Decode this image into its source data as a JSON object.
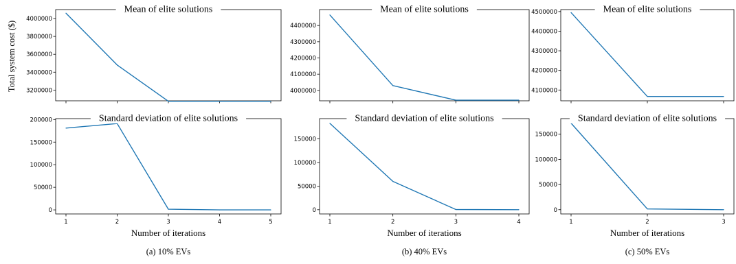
{
  "colors": {
    "line": "#1f77b4",
    "axes": "#000000",
    "background": "#ffffff"
  },
  "ylabel": "Total system cost ($)",
  "chart_data": [
    {
      "type": "line",
      "caption": "(a) 10% EVs",
      "xlabel": "Number of iterations",
      "xticks": [
        "1",
        "2",
        "3",
        "4",
        "5"
      ],
      "mean": {
        "title": "Mean of elite solutions",
        "x": [
          1,
          2,
          3,
          4,
          5
        ],
        "values": [
          4060000,
          3480000,
          3075000,
          3075000,
          3075000
        ],
        "ylim": [
          3080000,
          4100000
        ],
        "yticks": [
          "3200000",
          "3400000",
          "3600000",
          "3800000",
          "4000000"
        ]
      },
      "std": {
        "title": "Standard deviation of elite solutions",
        "x": [
          1,
          2,
          3,
          4,
          5
        ],
        "values": [
          181000,
          191000,
          1500,
          0,
          0
        ],
        "ylim": [
          -9000,
          202000
        ],
        "yticks": [
          "0",
          "50000",
          "100000",
          "150000",
          "200000"
        ]
      }
    },
    {
      "type": "line",
      "caption": "(b) 40% EVs",
      "xlabel": "Number of iterations",
      "xticks": [
        "1",
        "2",
        "3",
        "4"
      ],
      "mean": {
        "title": "Mean of elite solutions",
        "x": [
          1,
          2,
          3,
          4
        ],
        "values": [
          4465000,
          4030000,
          3940000,
          3940000
        ],
        "ylim": [
          3936000,
          4498000
        ],
        "yticks": [
          "4000000",
          "4100000",
          "4200000",
          "4300000",
          "4400000"
        ]
      },
      "std": {
        "title": "Standard deviation of elite solutions",
        "x": [
          1,
          2,
          3,
          4
        ],
        "values": [
          183000,
          60000,
          500,
          0
        ],
        "ylim": [
          -9000,
          193000
        ],
        "yticks": [
          "0",
          "50000",
          "100000",
          "150000"
        ]
      }
    },
    {
      "type": "line",
      "caption": "(c) 50% EVs",
      "xlabel": "Number of iterations",
      "xticks": [
        "1",
        "2",
        "3"
      ],
      "mean": {
        "title": "Mean of elite solutions",
        "x": [
          1,
          2,
          3
        ],
        "values": [
          4495000,
          4067000,
          4067000
        ],
        "ylim": [
          4045000,
          4510000
        ],
        "yticks": [
          "4100000",
          "4200000",
          "4300000",
          "4400000",
          "4500000"
        ]
      },
      "std": {
        "title": "Standard deviation of elite solutions",
        "x": [
          1,
          2,
          3
        ],
        "values": [
          172000,
          1500,
          0
        ],
        "ylim": [
          -8500,
          181000
        ],
        "yticks": [
          "0",
          "50000",
          "100000",
          "150000"
        ]
      }
    }
  ]
}
